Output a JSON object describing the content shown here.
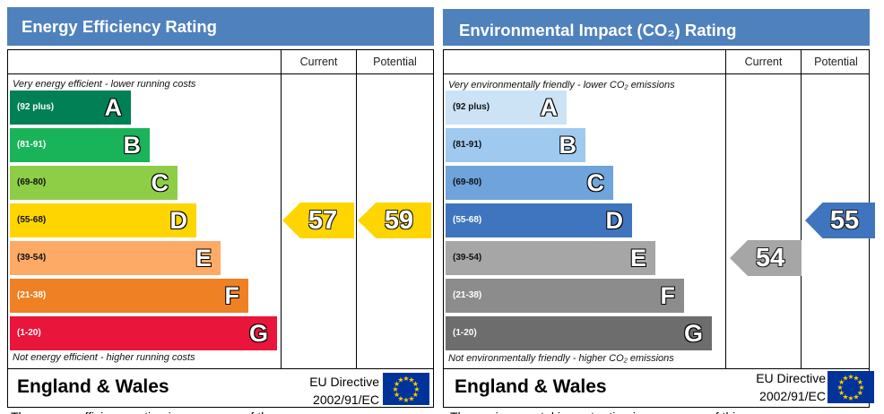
{
  "chart_data": [
    {
      "type": "bar",
      "title": "Energy Efficiency Rating",
      "columns": [
        "Current",
        "Potential"
      ],
      "top_caption": "Very energy efficient - lower running costs",
      "bottom_caption": "Not energy efficient - higher running costs",
      "bands": [
        {
          "letter": "A",
          "range": "(92 plus)",
          "color": "#008054"
        },
        {
          "letter": "B",
          "range": "(81-91)",
          "color": "#19b459"
        },
        {
          "letter": "C",
          "range": "(69-80)",
          "color": "#8dce46"
        },
        {
          "letter": "D",
          "range": "(55-68)",
          "color": "#ffd500"
        },
        {
          "letter": "E",
          "range": "(39-54)",
          "color": "#fcaa65"
        },
        {
          "letter": "F",
          "range": "(21-38)",
          "color": "#ef8023"
        },
        {
          "letter": "G",
          "range": "(1-20)",
          "color": "#e9153b"
        }
      ],
      "current": {
        "value": 57,
        "band": "D",
        "color": "#ffd500"
      },
      "potential": {
        "value": 59,
        "band": "D",
        "color": "#ffd500"
      },
      "footer": {
        "region": "England & Wales",
        "directive_line1": "EU Directive",
        "directive_line2": "2002/91/EC"
      }
    },
    {
      "type": "bar",
      "title": "Environmental Impact (CO₂) Rating",
      "columns": [
        "Current",
        "Potential"
      ],
      "top_caption": "Very environmentally friendly - lower CO₂ emissions",
      "bottom_caption": "Not environmentally friendly - higher CO₂ emissions",
      "bands": [
        {
          "letter": "A",
          "range": "(92 plus)",
          "color": "#cce3f5"
        },
        {
          "letter": "B",
          "range": "(81-91)",
          "color": "#9fc9ee"
        },
        {
          "letter": "C",
          "range": "(69-80)",
          "color": "#6fa3db"
        },
        {
          "letter": "D",
          "range": "(55-68)",
          "color": "#3f75bf"
        },
        {
          "letter": "E",
          "range": "(39-54)",
          "color": "#a6a6a6"
        },
        {
          "letter": "F",
          "range": "(21-38)",
          "color": "#8c8c8c"
        },
        {
          "letter": "G",
          "range": "(1-20)",
          "color": "#6d6d6d"
        }
      ],
      "current": {
        "value": 54,
        "band": "E",
        "color": "#a6a6a6"
      },
      "potential": {
        "value": 55,
        "band": "D",
        "color": "#3f75bf"
      },
      "footer": {
        "region": "England & Wales",
        "directive_line1": "EU Directive",
        "directive_line2": "2002/91/EC"
      }
    }
  ],
  "below_text": [
    "The energy efficiency rating is a measure of the",
    "The environmental impact rating is a measure of this"
  ]
}
